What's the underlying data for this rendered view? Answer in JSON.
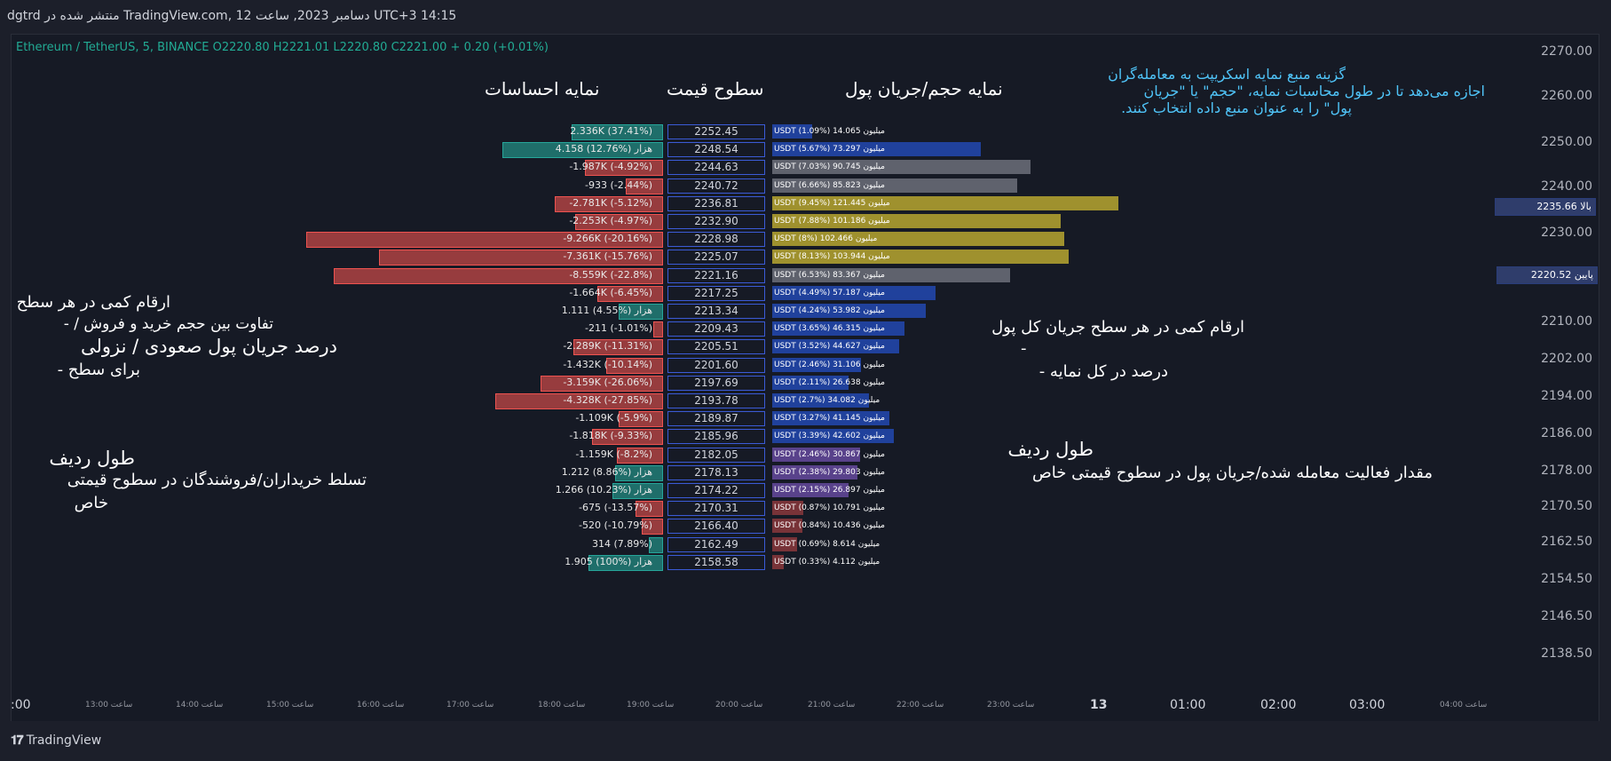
{
  "header": {
    "publish_info": "dgtrd منتشر شده در TradingView.com, 12 دسامبر 2023, ساعت UTC+3 14:15"
  },
  "legend": {
    "text": "Ethereum / TetherUS, 5, BINANCE O2220.80 H2221.01 L2220.80 C2221.00 + 0.20 (+0.01%)"
  },
  "headings": {
    "sentiment": "نمایه احساسات",
    "price_levels": "سطوح قیمت",
    "volume_profile": "نمایه حجم/جریان پول"
  },
  "notes": {
    "source_line1": "گزینه منبع نمایه اسکریپت به معامله‌گران",
    "source_line2": "اجازه می‌دهد تا در طول محاسبات نمایه، \"حجم\" یا \"جریان",
    "source_line3": "پول\" را به عنوان منبع داده انتخاب کنند.",
    "left_q_title": "ارقام کمی در هر سطح",
    "left_q_line1": "تفاوت بین حجم خرید و فروش / -",
    "left_q_line2": "درصد جریان پول صعودی / نزولی",
    "left_q_line3": "برای سطح -",
    "left_r_title": "طول ردیف",
    "left_r_line1": "تسلط خریداران/فروشندگان در سطوح قیمتی",
    "left_r_line2": "خاص",
    "right_q_title": "ارقام کمی در هر سطح جریان کل پول",
    "right_q_line1": "-",
    "right_q_line2": "درصد در کل نمایه -",
    "right_r_title": "طول ردیف",
    "right_r_line1": "مقدار فعالیت معامله شده/جریان پول در سطوح قیمتی خاص"
  },
  "price_axis": {
    "labels": [
      "2270.00",
      "2260.00",
      "2250.00",
      "2240.00",
      "2230.00",
      "2210.00",
      "2202.00",
      "2194.00",
      "2186.00",
      "2178.00",
      "2170.50",
      "2162.50",
      "2154.50",
      "2146.50",
      "2138.50"
    ],
    "high_tag": "بالا 2235.66",
    "low_tag": "پایین 2220.52"
  },
  "time_axis": {
    "small": [
      "ساعت 13:00",
      "ساعت 14:00",
      "ساعت 15:00",
      "ساعت 16:00",
      "ساعت 17:00",
      "ساعت 18:00",
      "ساعت 19:00",
      "ساعت 20:00",
      "ساعت 21:00",
      "ساعت 22:00",
      "ساعت 23:00",
      "ساعت 04:00"
    ],
    "big": [
      ":00",
      "13",
      "01:00",
      "02:00",
      "03:00"
    ]
  },
  "footer": {
    "brand": "TradingView"
  },
  "colors": {
    "bull": "#26a69a",
    "bear": "#ef5350",
    "blue": "#2962ff",
    "grey": "#787b86",
    "gold": "#d4c13a",
    "purple": "#7e57c2"
  },
  "chart_data": {
    "type": "table",
    "title": "Ethereum / TetherUS, 5, BINANCE — Sentiment & Volume Profile",
    "rows": [
      {
        "level": "2252.45",
        "sentiment_value": 2336,
        "sentiment_pct": 37.41,
        "sentiment_label": "2.336K (37.41%)",
        "volume_value": 14.065,
        "volume_pct": 1.09,
        "volume_label": "USDT (1.09%) میلیون 14.065",
        "vcolor": "blue"
      },
      {
        "level": "2248.54",
        "sentiment_value": 4158,
        "sentiment_pct": 12.76,
        "sentiment_label": "4.158 هزار (%12.76)",
        "volume_value": 73.297,
        "volume_pct": 5.67,
        "volume_label": "USDT (5.67%) میلیون 73.297",
        "vcolor": "blue"
      },
      {
        "level": "2244.63",
        "sentiment_value": -1987,
        "sentiment_pct": -4.92,
        "sentiment_label": "-1.987K (-4.92%)",
        "volume_value": 90.745,
        "volume_pct": 7.03,
        "volume_label": "USDT (7.03%) میلیون 90.745",
        "vcolor": "grey"
      },
      {
        "level": "2240.72",
        "sentiment_value": -933,
        "sentiment_pct": -2.44,
        "sentiment_label": "-933 (-2.44%)",
        "volume_value": 85.823,
        "volume_pct": 6.66,
        "volume_label": "USDT (6.66%) میلیون 85.823",
        "vcolor": "grey"
      },
      {
        "level": "2236.81",
        "sentiment_value": -2781,
        "sentiment_pct": -5.12,
        "sentiment_label": "-2.781K (-5.12%)",
        "volume_value": 121.445,
        "volume_pct": 9.45,
        "volume_label": "USDT (9.45%) میلیون 121.445",
        "vcolor": "gold"
      },
      {
        "level": "2232.90",
        "sentiment_value": -2253,
        "sentiment_pct": -4.97,
        "sentiment_label": "-2.253K (-4.97%)",
        "volume_value": 101.186,
        "volume_pct": 7.88,
        "volume_label": "USDT (7.88%) میلیون 101.186",
        "vcolor": "gold"
      },
      {
        "level": "2228.98",
        "sentiment_value": -9266,
        "sentiment_pct": -20.16,
        "sentiment_label": "-9.266K (-20.16%)",
        "volume_value": 102.466,
        "volume_pct": 8.0,
        "volume_label": "USDT (8%) میلیون 102.466",
        "vcolor": "gold"
      },
      {
        "level": "2225.07",
        "sentiment_value": -7361,
        "sentiment_pct": -15.76,
        "sentiment_label": "-7.361K (-15.76%)",
        "volume_value": 103.944,
        "volume_pct": 8.13,
        "volume_label": "USDT (8.13%) میلیون 103.944",
        "vcolor": "gold"
      },
      {
        "level": "2221.16",
        "sentiment_value": -8559,
        "sentiment_pct": -22.8,
        "sentiment_label": "-8.559K (-22.8%)",
        "volume_value": 83.367,
        "volume_pct": 6.53,
        "volume_label": "USDT (6.53%) میلیون 83.367",
        "vcolor": "grey"
      },
      {
        "level": "2217.25",
        "sentiment_value": -1664,
        "sentiment_pct": -6.45,
        "sentiment_label": "-1.664K (-6.45%)",
        "volume_value": 57.187,
        "volume_pct": 4.49,
        "volume_label": "USDT (4.49%) میلیون 57.187",
        "vcolor": "blue"
      },
      {
        "level": "2213.34",
        "sentiment_value": 1111,
        "sentiment_pct": 4.55,
        "sentiment_label": "1.111 هزار (%4.55)",
        "volume_value": 53.982,
        "volume_pct": 4.24,
        "volume_label": "USDT (4.24%) میلیون 53.982",
        "vcolor": "blue"
      },
      {
        "level": "2209.43",
        "sentiment_value": -211,
        "sentiment_pct": -1.01,
        "sentiment_label": "-211 (-1.01%)",
        "volume_value": 46.315,
        "volume_pct": 3.65,
        "volume_label": "USDT (3.65%) میلیون 46.315",
        "vcolor": "blue"
      },
      {
        "level": "2205.51",
        "sentiment_value": -2289,
        "sentiment_pct": -11.31,
        "sentiment_label": "-2.289K (-11.31%)",
        "volume_value": 44.627,
        "volume_pct": 3.52,
        "volume_label": "USDT (3.52%) میلیون 44.627",
        "vcolor": "blue"
      },
      {
        "level": "2201.60",
        "sentiment_value": -1432,
        "sentiment_pct": -10.14,
        "sentiment_label": "-1.432K (-10.14%)",
        "volume_value": 31.106,
        "volume_pct": 2.46,
        "volume_label": "USDT (2.46%) میلیون 31.106",
        "vcolor": "blue"
      },
      {
        "level": "2197.69",
        "sentiment_value": -3159,
        "sentiment_pct": -26.06,
        "sentiment_label": "-3.159K (-26.06%)",
        "volume_value": 26.638,
        "volume_pct": 2.11,
        "volume_label": "USDT (2.11%) میلیون 26.638",
        "vcolor": "blue"
      },
      {
        "level": "2193.78",
        "sentiment_value": -4328,
        "sentiment_pct": -27.85,
        "sentiment_label": "-4.328K (-27.85%)",
        "volume_value": 34.082,
        "volume_pct": 2.7,
        "volume_label": "USDT (2.7%) میلیون 34.082",
        "vcolor": "blue"
      },
      {
        "level": "2189.87",
        "sentiment_value": -1109,
        "sentiment_pct": -5.9,
        "sentiment_label": "-1.109K (-5.9%)",
        "volume_value": 41.145,
        "volume_pct": 3.27,
        "volume_label": "USDT (3.27%) میلیون 41.145",
        "vcolor": "blue"
      },
      {
        "level": "2185.96",
        "sentiment_value": -1818,
        "sentiment_pct": -9.33,
        "sentiment_label": "-1.818K (-9.33%)",
        "volume_value": 42.602,
        "volume_pct": 3.39,
        "volume_label": "USDT (3.39%) میلیون 42.602",
        "vcolor": "blue"
      },
      {
        "level": "2182.05",
        "sentiment_value": -1159,
        "sentiment_pct": -8.2,
        "sentiment_label": "-1.159K (-8.2%)",
        "volume_value": 30.867,
        "volume_pct": 2.46,
        "volume_label": "USDT (2.46%) میلیون 30.867",
        "vcolor": "purple"
      },
      {
        "level": "2178.13",
        "sentiment_value": 1212,
        "sentiment_pct": 8.86,
        "sentiment_label": "1.212 هزار (%8.86)",
        "volume_value": 29.803,
        "volume_pct": 2.38,
        "volume_label": "USDT (2.38%) میلیون 29.803",
        "vcolor": "purple"
      },
      {
        "level": "2174.22",
        "sentiment_value": 1266,
        "sentiment_pct": 10.23,
        "sentiment_label": "1.266 هزار (%10.23)",
        "volume_value": 26.897,
        "volume_pct": 2.15,
        "volume_label": "USDT (2.15%) میلیون 26.897",
        "vcolor": "purple"
      },
      {
        "level": "2170.31",
        "sentiment_value": -675,
        "sentiment_pct": -13.57,
        "sentiment_label": "-675 (-13.57%)",
        "volume_value": 10.791,
        "volume_pct": 0.87,
        "volume_label": "USDT (0.87%) میلیون 10.791",
        "vcolor": "red"
      },
      {
        "level": "2166.40",
        "sentiment_value": -520,
        "sentiment_pct": -10.79,
        "sentiment_label": "-520 (-10.79%)",
        "volume_value": 10.436,
        "volume_pct": 0.84,
        "volume_label": "USDT (0.84%) میلیون 10.436",
        "vcolor": "red"
      },
      {
        "level": "2162.49",
        "sentiment_value": 314,
        "sentiment_pct": 7.89,
        "sentiment_label": "314 (7.89%)",
        "volume_value": 8.614,
        "volume_pct": 0.69,
        "volume_label": "USDT (0.69%) میلیون 8.614",
        "vcolor": "red"
      },
      {
        "level": "2158.58",
        "sentiment_value": 1905,
        "sentiment_pct": 100,
        "sentiment_label": "1.905 هزار (%100)",
        "volume_value": 4.112,
        "volume_pct": 0.33,
        "volume_label": "USDT (0.33%) میلیون 4.112",
        "vcolor": "red"
      }
    ]
  }
}
